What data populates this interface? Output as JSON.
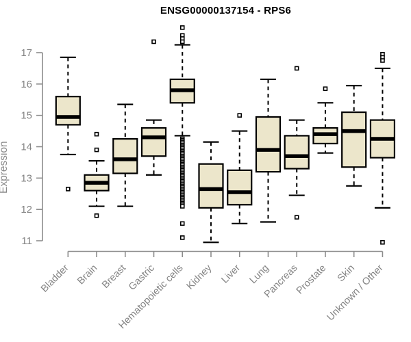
{
  "chart_data": {
    "type": "box",
    "title": "ENSG00000137154 - RPS6",
    "ylabel": "Expression",
    "xlabel": "",
    "ylim": [
      11,
      17
    ],
    "yticks": [
      11,
      12,
      13,
      14,
      15,
      16,
      17
    ],
    "grid": false,
    "legend": "none",
    "colors": {
      "box_fill": "#ECE6CB",
      "box_stroke": "#000000",
      "median": "#000000",
      "whisker": "#000000",
      "axis": "#8c8c8c",
      "tick_label": "#848484",
      "title": "#000000",
      "background": "#ffffff"
    },
    "categories": [
      "Bladder",
      "Brain",
      "Breast",
      "Gastric",
      "Hematopoietic cells",
      "Kidney",
      "Liver",
      "Lung",
      "Pancreas",
      "Prostate",
      "Skin",
      "Unknown / Other"
    ],
    "series": [
      {
        "category": "Bladder",
        "low": 13.75,
        "q1": 14.7,
        "median": 14.95,
        "q3": 15.6,
        "high": 16.85,
        "outliers": [
          12.65
        ]
      },
      {
        "category": "Brain",
        "low": 12.1,
        "q1": 12.6,
        "median": 12.85,
        "q3": 13.1,
        "high": 13.55,
        "outliers": [
          14.4,
          13.9,
          11.8
        ]
      },
      {
        "category": "Breast",
        "low": 12.1,
        "q1": 13.15,
        "median": 13.6,
        "q3": 14.25,
        "high": 15.35,
        "outliers": []
      },
      {
        "category": "Gastric",
        "low": 13.1,
        "q1": 13.7,
        "median": 14.3,
        "q3": 14.6,
        "high": 14.85,
        "outliers": [
          17.35
        ]
      },
      {
        "category": "Hematopoietic cells",
        "low": 14.35,
        "q1": 15.4,
        "median": 15.8,
        "q3": 16.15,
        "high": 17.25,
        "outliers": [
          17.8,
          17.55,
          17.45,
          17.35,
          14.25,
          14.2,
          14.15,
          14.1,
          14.05,
          14.0,
          13.95,
          13.9,
          13.85,
          13.8,
          13.75,
          13.7,
          13.65,
          13.6,
          13.55,
          13.5,
          13.45,
          13.4,
          13.35,
          13.3,
          13.25,
          13.2,
          13.15,
          13.1,
          13.05,
          13.0,
          12.95,
          12.9,
          12.85,
          12.8,
          12.75,
          12.7,
          12.65,
          12.6,
          12.55,
          12.5,
          12.45,
          12.4,
          12.35,
          12.3,
          12.25,
          12.2,
          12.15,
          12.1,
          11.55,
          11.1
        ]
      },
      {
        "category": "Kidney",
        "low": 10.95,
        "q1": 12.05,
        "median": 12.65,
        "q3": 13.45,
        "high": 14.15,
        "outliers": []
      },
      {
        "category": "Liver",
        "low": 11.55,
        "q1": 12.15,
        "median": 12.55,
        "q3": 13.25,
        "high": 14.5,
        "outliers": [
          15.0
        ]
      },
      {
        "category": "Lung",
        "low": 11.6,
        "q1": 13.2,
        "median": 13.9,
        "q3": 14.95,
        "high": 16.15,
        "outliers": []
      },
      {
        "category": "Pancreas",
        "low": 12.45,
        "q1": 13.3,
        "median": 13.7,
        "q3": 14.35,
        "high": 14.85,
        "outliers": [
          16.5,
          11.75
        ]
      },
      {
        "category": "Prostate",
        "low": 13.8,
        "q1": 14.1,
        "median": 14.4,
        "q3": 14.6,
        "high": 15.4,
        "outliers": [
          15.85
        ]
      },
      {
        "category": "Skin",
        "low": 12.75,
        "q1": 13.35,
        "median": 14.5,
        "q3": 15.1,
        "high": 15.95,
        "outliers": []
      },
      {
        "category": "Unknown / Other",
        "low": 12.05,
        "q1": 13.65,
        "median": 14.25,
        "q3": 14.85,
        "high": 16.5,
        "outliers": [
          16.95,
          16.85,
          16.75,
          10.95
        ]
      }
    ]
  }
}
